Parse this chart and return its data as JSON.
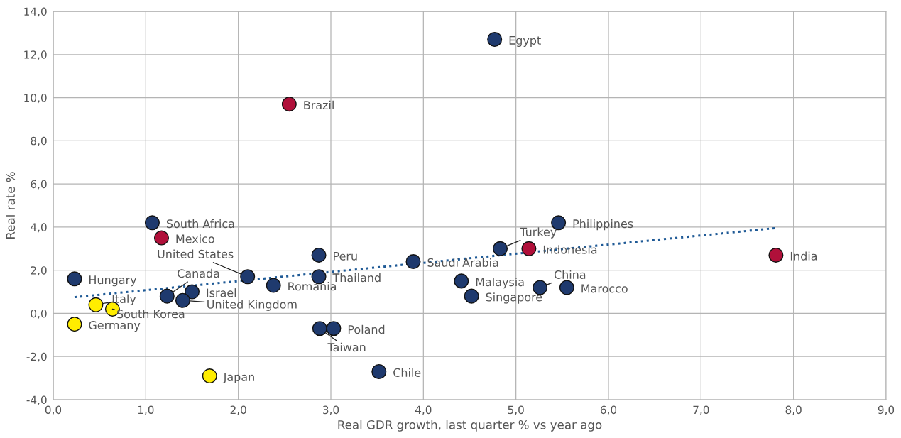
{
  "chart_data": {
    "type": "scatter",
    "xlabel": "Real GDR growth, last quarter % vs year ago",
    "ylabel": "Real rate %",
    "xlim": [
      0,
      9
    ],
    "ylim": [
      -4,
      14
    ],
    "xticks": [
      {
        "value": 0,
        "label": "0,0"
      },
      {
        "value": 1,
        "label": "1,0"
      },
      {
        "value": 2,
        "label": "2,0"
      },
      {
        "value": 3,
        "label": "3,0"
      },
      {
        "value": 4,
        "label": "4,0"
      },
      {
        "value": 5,
        "label": "5,0"
      },
      {
        "value": 6,
        "label": "6,0"
      },
      {
        "value": 7,
        "label": "7,0"
      },
      {
        "value": 8,
        "label": "8,0"
      },
      {
        "value": 9,
        "label": "9,0"
      }
    ],
    "yticks": [
      {
        "value": -4,
        "label": "-4,0"
      },
      {
        "value": -2,
        "label": "-2,0"
      },
      {
        "value": 0,
        "label": "0,0"
      },
      {
        "value": 2,
        "label": "2,0"
      },
      {
        "value": 4,
        "label": "4,0"
      },
      {
        "value": 6,
        "label": "6,0"
      },
      {
        "value": 8,
        "label": "8,0"
      },
      {
        "value": 10,
        "label": "10,0"
      },
      {
        "value": 12,
        "label": "12,0"
      },
      {
        "value": 14,
        "label": "14,0"
      }
    ],
    "grid": true,
    "marker": "circle",
    "series": [
      {
        "type": "line",
        "color": "#1f5a96",
        "line_style": "dotted",
        "marker": "none",
        "x": [
          0.23,
          7.8
        ],
        "values": [
          0.75,
          3.95
        ]
      },
      {
        "color": "#1f3a6e",
        "x": [
          4.77,
          1.07,
          5.46,
          4.83,
          2.87,
          3.89,
          2.1,
          2.87,
          0.23,
          2.38,
          4.41,
          5.26,
          5.55,
          4.52,
          1.23,
          1.5,
          1.4,
          2.88,
          3.03,
          3.52
        ],
        "values": [
          12.7,
          4.2,
          4.2,
          3.0,
          2.7,
          2.4,
          1.7,
          1.7,
          1.6,
          1.3,
          1.5,
          1.2,
          1.2,
          0.8,
          0.8,
          1.0,
          0.6,
          -0.7,
          -0.7,
          -2.7
        ]
      },
      {
        "color": "#b0103a",
        "x": [
          2.55,
          1.17,
          5.14,
          7.81
        ],
        "values": [
          9.7,
          3.5,
          3.0,
          2.7
        ]
      },
      {
        "color": "#ffed00",
        "x": [
          0.46,
          0.64,
          0.23,
          1.69
        ],
        "values": [
          0.4,
          0.2,
          -0.5,
          -2.9
        ]
      }
    ],
    "annotations": [
      {
        "text": "Egypt",
        "x": 4.77,
        "y": 12.7
      },
      {
        "text": "South Africa",
        "x": 1.07,
        "y": 4.2
      },
      {
        "text": "Philippines",
        "x": 5.46,
        "y": 4.2
      },
      {
        "text": "Turkey",
        "x": 4.83,
        "y": 3.0
      },
      {
        "text": "Peru",
        "x": 2.87,
        "y": 2.7
      },
      {
        "text": "Saudi Arabia",
        "x": 3.89,
        "y": 2.4
      },
      {
        "text": "United States",
        "x": 2.1,
        "y": 1.7
      },
      {
        "text": "Thailand",
        "x": 2.87,
        "y": 1.7
      },
      {
        "text": "Hungary",
        "x": 0.23,
        "y": 1.6
      },
      {
        "text": "Romania",
        "x": 2.38,
        "y": 1.3
      },
      {
        "text": "Malaysia",
        "x": 4.41,
        "y": 1.5
      },
      {
        "text": "China",
        "x": 5.26,
        "y": 1.2
      },
      {
        "text": "Marocco",
        "x": 5.55,
        "y": 1.2
      },
      {
        "text": "Singapore",
        "x": 4.52,
        "y": 0.8
      },
      {
        "text": "Canada",
        "x": 1.23,
        "y": 0.8
      },
      {
        "text": "Israel",
        "x": 1.5,
        "y": 1.0
      },
      {
        "text": "United Kingdom",
        "x": 1.4,
        "y": 0.6
      },
      {
        "text": "Taiwan",
        "x": 2.88,
        "y": -0.7
      },
      {
        "text": "Poland",
        "x": 3.03,
        "y": -0.7
      },
      {
        "text": "Chile",
        "x": 3.52,
        "y": -2.7
      },
      {
        "text": "Brazil",
        "x": 2.55,
        "y": 9.7
      },
      {
        "text": "Mexico",
        "x": 1.17,
        "y": 3.5
      },
      {
        "text": "Indonesia",
        "x": 5.14,
        "y": 3.0
      },
      {
        "text": "India",
        "x": 7.81,
        "y": 2.7
      },
      {
        "text": "Italy",
        "x": 0.46,
        "y": 0.4
      },
      {
        "text": "South Korea",
        "x": 0.64,
        "y": 0.2
      },
      {
        "text": "Germany",
        "x": 0.23,
        "y": -0.5
      },
      {
        "text": "Japan",
        "x": 1.69,
        "y": -2.9
      }
    ]
  }
}
